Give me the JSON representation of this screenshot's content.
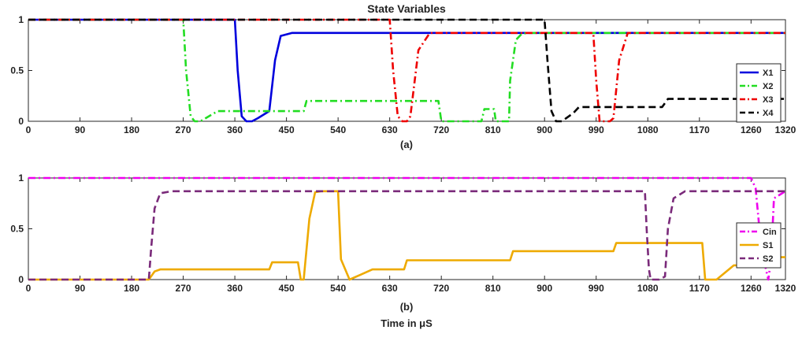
{
  "xlabel": "Time in μS",
  "chart_data": [
    {
      "type": "line",
      "title": "State Variables",
      "panel_label": "(a)",
      "xlim": [
        0,
        1320
      ],
      "ylim": [
        0,
        1
      ],
      "x_ticks": [
        "0",
        "90",
        "180",
        "270",
        "360",
        "450",
        "540",
        "630",
        "720",
        "810",
        "900",
        "990",
        "1080",
        "1170",
        "1260",
        "1320"
      ],
      "y_ticks": [
        "0",
        "0.5",
        "1"
      ],
      "legend_position": "right",
      "series": [
        {
          "name": "X1",
          "color": "#0000dd",
          "dash": "solid",
          "x": [
            0,
            360,
            365,
            372,
            380,
            390,
            400,
            420,
            430,
            440,
            460,
            1320
          ],
          "y": [
            1,
            1,
            0.5,
            0.05,
            0,
            0,
            0.03,
            0.1,
            0.6,
            0.84,
            0.87,
            0.87
          ]
        },
        {
          "name": "X2",
          "color": "#22dd22",
          "dash": "dashdot",
          "x": [
            0,
            270,
            275,
            283,
            290,
            300,
            330,
            480,
            485,
            715,
            720,
            790,
            795,
            812,
            815,
            838,
            840,
            850,
            860,
            870,
            1320
          ],
          "y": [
            1,
            1,
            0.5,
            0.05,
            0,
            0,
            0.1,
            0.1,
            0.2,
            0.2,
            0,
            0,
            0.12,
            0.12,
            0,
            0,
            0.4,
            0.8,
            0.86,
            0.87,
            0.87
          ]
        },
        {
          "name": "X3",
          "color": "#ee0000",
          "dash": "dashdot",
          "x": [
            0,
            630,
            636,
            644,
            652,
            660,
            666,
            680,
            700,
            985,
            990,
            996,
            1014,
            1020,
            1030,
            1045,
            1320
          ],
          "y": [
            1,
            1,
            0.5,
            0.05,
            0,
            0,
            0.05,
            0.7,
            0.87,
            0.87,
            0.4,
            0,
            0,
            0.03,
            0.6,
            0.87,
            0.87
          ]
        },
        {
          "name": "X4",
          "color": "#000000",
          "dash": "dashed",
          "x": [
            0,
            900,
            905,
            912,
            920,
            930,
            950,
            960,
            1105,
            1115,
            1320
          ],
          "y": [
            1,
            1,
            0.6,
            0.1,
            0,
            0,
            0.08,
            0.14,
            0.14,
            0.22,
            0.22
          ]
        }
      ]
    },
    {
      "type": "line",
      "title": "",
      "panel_label": "(b)",
      "xlim": [
        0,
        1320
      ],
      "ylim": [
        0,
        1
      ],
      "x_ticks": [
        "0",
        "90",
        "180",
        "270",
        "360",
        "450",
        "540",
        "630",
        "720",
        "810",
        "900",
        "990",
        "1080",
        "1170",
        "1260",
        "1320"
      ],
      "y_ticks": [
        "0",
        "0.5",
        "1"
      ],
      "legend_position": "right",
      "series": [
        {
          "name": "Cin",
          "color": "#ee00ee",
          "dash": "dashdot",
          "x": [
            0,
            1260,
            1268,
            1278,
            1290,
            1295,
            1300,
            1320
          ],
          "y": [
            1,
            1,
            0.9,
            0.3,
            0,
            0.2,
            0.8,
            0.87
          ]
        },
        {
          "name": "S1",
          "color": "#eeaa00",
          "dash": "solid",
          "x": [
            0,
            210,
            220,
            230,
            420,
            425,
            445,
            450,
            470,
            475,
            480,
            490,
            500,
            510,
            540,
            545,
            560,
            580,
            600,
            655,
            660,
            840,
            845,
            1020,
            1025,
            1175,
            1180,
            1200,
            1230,
            1300,
            1305,
            1320
          ],
          "y": [
            0,
            0,
            0.08,
            0.1,
            0.1,
            0.17,
            0.17,
            0.17,
            0.17,
            0,
            0,
            0.6,
            0.86,
            0.87,
            0.87,
            0.2,
            0,
            0.05,
            0.1,
            0.1,
            0.19,
            0.19,
            0.28,
            0.28,
            0.36,
            0.36,
            0,
            0,
            0.14,
            0.14,
            0.22,
            0.22
          ]
        },
        {
          "name": "S2",
          "color": "#7a2a7a",
          "dash": "dashed",
          "x": [
            0,
            210,
            214,
            220,
            230,
            250,
            1075,
            1078,
            1082,
            1085,
            1100,
            1110,
            1115,
            1125,
            1145,
            1320
          ],
          "y": [
            0,
            0,
            0.3,
            0.7,
            0.85,
            0.87,
            0.87,
            0.5,
            0.1,
            0,
            0,
            0.03,
            0.5,
            0.8,
            0.87,
            0.87
          ]
        }
      ]
    }
  ]
}
